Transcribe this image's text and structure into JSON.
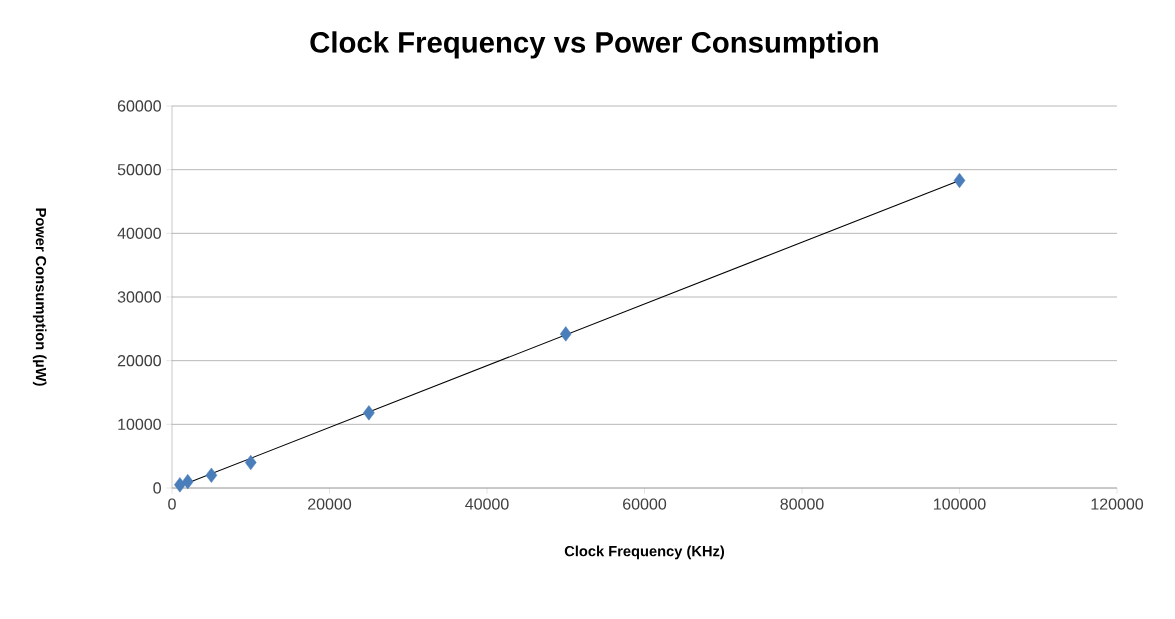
{
  "chart_data": {
    "type": "scatter",
    "title": "Clock Frequency vs Power Consumption",
    "xlabel": "Clock Frequency (KHz)",
    "ylabel": "Power Consumption (µW)",
    "series": [
      {
        "color": "#4a7ebb",
        "marker": "diamond",
        "x": [
          1000,
          2000,
          5000,
          10000,
          25000,
          50000,
          100000
        ],
        "values": [
          500,
          1000,
          2000,
          4000,
          11800,
          24200,
          48300
        ]
      },
      {
        "type": "line",
        "color": "#000000",
        "marker": "none",
        "line_style": "solid",
        "x": [
          1000,
          100000
        ],
        "values": [
          300,
          48300
        ]
      }
    ],
    "xlim": [
      0,
      120000
    ],
    "xticks": [
      0,
      20000,
      40000,
      60000,
      80000,
      100000,
      120000
    ],
    "ylim": [
      0,
      60000
    ],
    "yticks": [
      0,
      10000,
      20000,
      30000,
      40000,
      50000,
      60000
    ],
    "grid": "y"
  }
}
